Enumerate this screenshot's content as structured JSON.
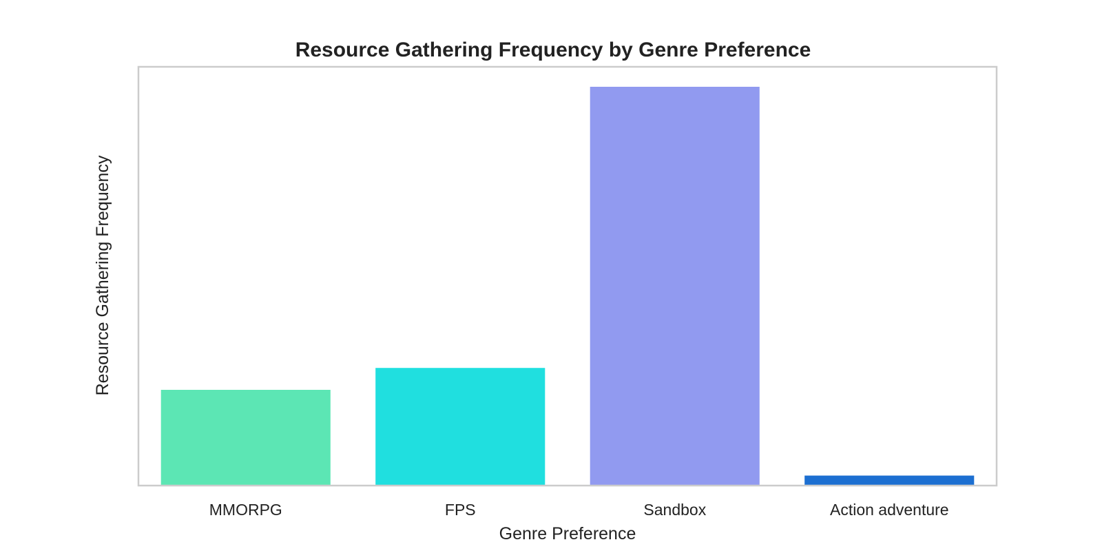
{
  "chart_data": {
    "type": "bar",
    "title": "Resource Gathering Frequency by Genre Preference",
    "xlabel": "Genre Preference",
    "ylabel": "Resource Gathering Frequency",
    "categories": [
      "MMORPG",
      "FPS",
      "Sandbox",
      "Action adventure"
    ],
    "values": [
      24,
      29.5,
      100,
      2.5
    ],
    "colors": [
      "#5ce6b4",
      "#20dfdf",
      "#919af0",
      "#1c6fd1"
    ],
    "ylim": [
      0,
      105
    ],
    "y_ticks_shown": false,
    "grid": false,
    "frame_color": "#cccccc"
  }
}
